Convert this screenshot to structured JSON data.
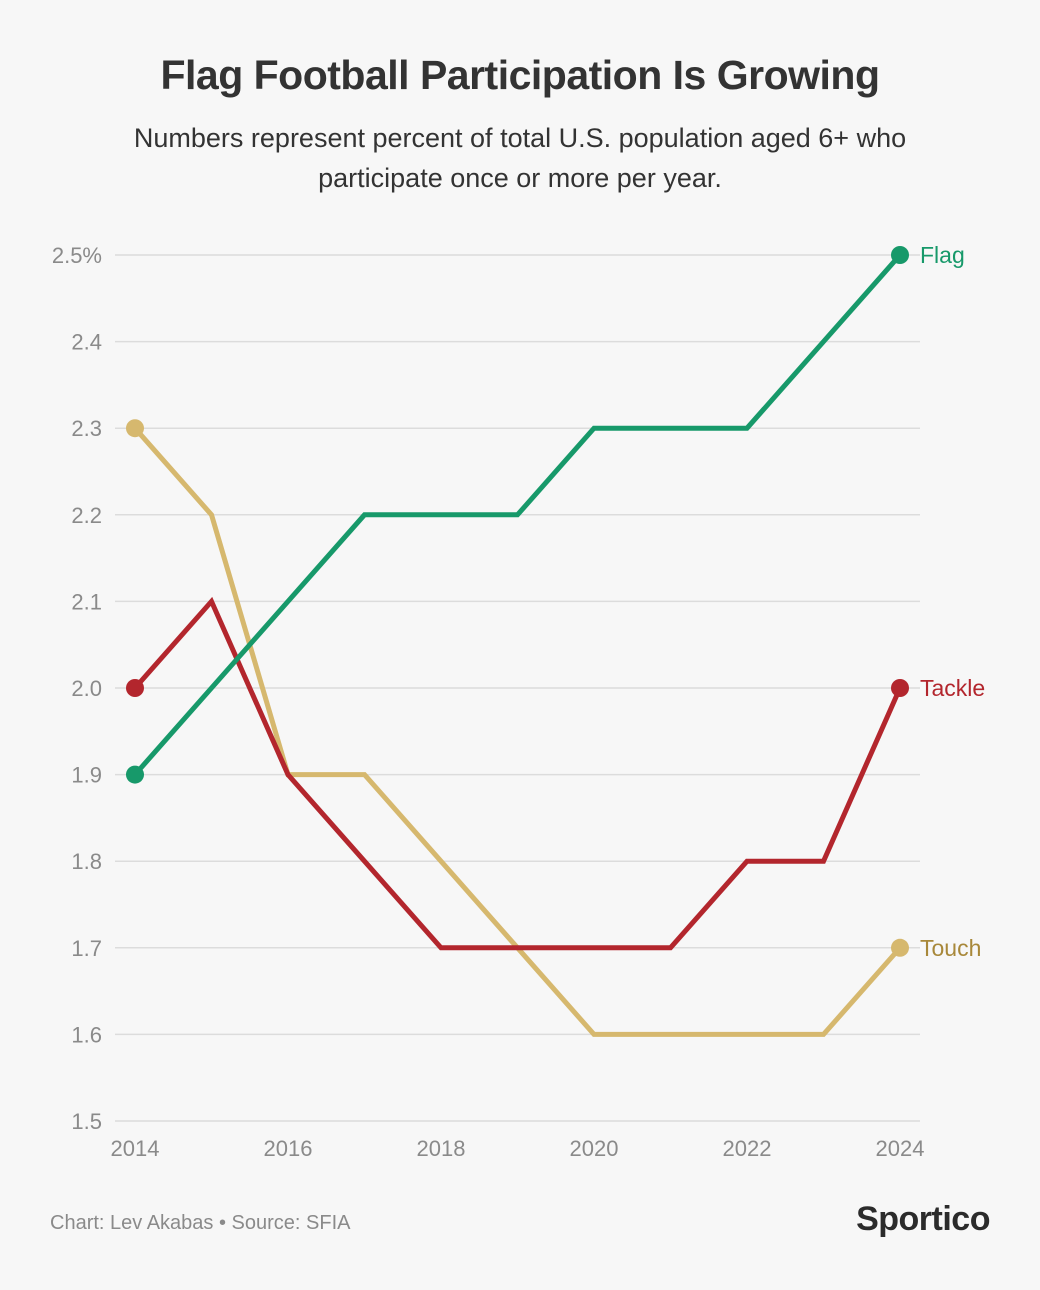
{
  "chart_data": {
    "type": "line",
    "title": "Flag Football Participation Is Growing",
    "subtitle": "Numbers represent percent of total U.S. population aged 6+ who participate once or more per year.",
    "x": [
      2014,
      2015,
      2016,
      2017,
      2018,
      2019,
      2020,
      2021,
      2022,
      2023,
      2024
    ],
    "x_ticks": [
      "2014",
      "2016",
      "2018",
      "2020",
      "2022",
      "2024"
    ],
    "x_tick_values": [
      2014,
      2016,
      2018,
      2020,
      2022,
      2024
    ],
    "y_ticks": [
      "2.5%",
      "2.4",
      "2.3",
      "2.2",
      "2.1",
      "2.0",
      "1.9",
      "1.8",
      "1.7",
      "1.6",
      "1.5"
    ],
    "y_tick_values": [
      2.5,
      2.4,
      2.3,
      2.2,
      2.1,
      2.0,
      1.9,
      1.8,
      1.7,
      1.6,
      1.5
    ],
    "xlim": [
      2014,
      2024
    ],
    "ylim": [
      1.5,
      2.5
    ],
    "grid": true,
    "series": [
      {
        "name": "Touch",
        "color": "#d6b86e",
        "label_color": "#a8883a",
        "values": [
          2.3,
          2.2,
          1.9,
          1.9,
          1.8,
          1.7,
          1.6,
          1.6,
          1.6,
          1.6,
          1.7
        ]
      },
      {
        "name": "Tackle",
        "color": "#b3262d",
        "label_color": "#b3262d",
        "values": [
          2.0,
          2.1,
          1.9,
          1.8,
          1.7,
          1.7,
          1.7,
          1.7,
          1.8,
          1.8,
          2.0
        ]
      },
      {
        "name": "Flag",
        "color": "#17996a",
        "label_color": "#17996a",
        "values": [
          1.9,
          2.0,
          2.1,
          2.2,
          2.2,
          2.2,
          2.3,
          2.3,
          2.3,
          2.4,
          2.5
        ]
      }
    ]
  },
  "footer": {
    "credit": "Chart: Lev Akabas • Source: SFIA",
    "logo": "Sportico"
  }
}
